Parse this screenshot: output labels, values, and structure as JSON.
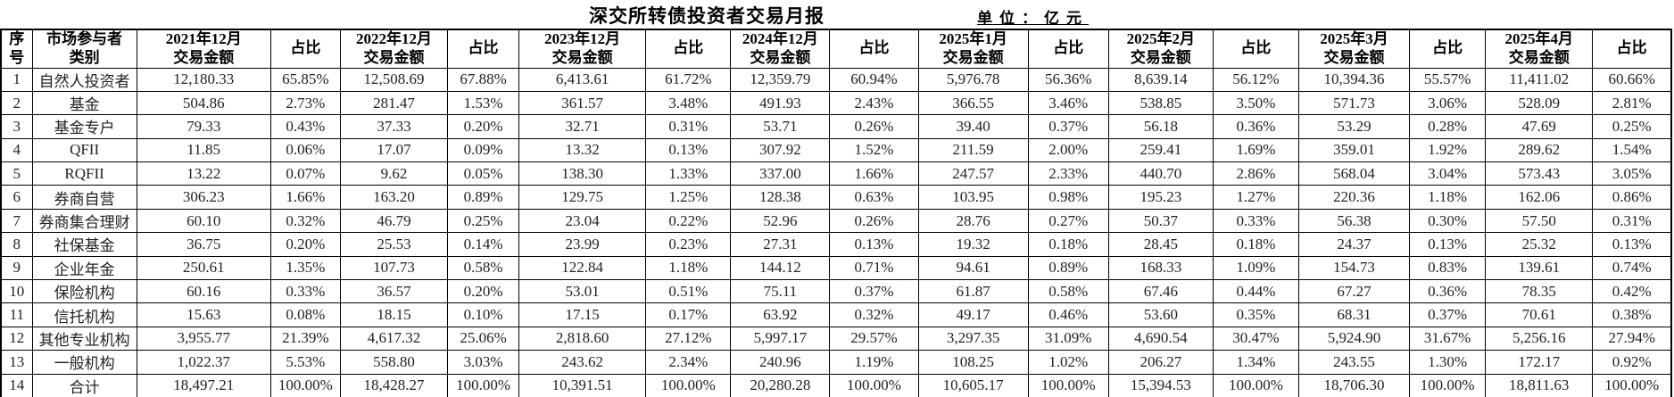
{
  "title": "深交所转债投资者交易月报",
  "unit_label": "单位：亿元",
  "colors": {
    "background": "#ffffff",
    "border": "#000000",
    "text": "#1a1a1a"
  },
  "table": {
    "seq_header": "序号",
    "category_header": "市场参与者\n类别",
    "amount_suffix": "交易金额",
    "ratio_header": "占比",
    "periods": [
      "2021年12月",
      "2022年12月",
      "2023年12月",
      "2024年12月",
      "2025年1月",
      "2025年2月",
      "2025年3月",
      "2025年4月"
    ],
    "rows": [
      {
        "seq": "1",
        "category": "自然人投资者",
        "values": [
          "12,180.33",
          "65.85%",
          "12,508.69",
          "67.88%",
          "6,413.61",
          "61.72%",
          "12,359.79",
          "60.94%",
          "5,976.78",
          "56.36%",
          "8,639.14",
          "56.12%",
          "10,394.36",
          "55.57%",
          "11,411.02",
          "60.66%"
        ]
      },
      {
        "seq": "2",
        "category": "基金",
        "values": [
          "504.86",
          "2.73%",
          "281.47",
          "1.53%",
          "361.57",
          "3.48%",
          "491.93",
          "2.43%",
          "366.55",
          "3.46%",
          "538.85",
          "3.50%",
          "571.73",
          "3.06%",
          "528.09",
          "2.81%"
        ]
      },
      {
        "seq": "3",
        "category": "基金专户",
        "values": [
          "79.33",
          "0.43%",
          "37.33",
          "0.20%",
          "32.71",
          "0.31%",
          "53.71",
          "0.26%",
          "39.40",
          "0.37%",
          "56.18",
          "0.36%",
          "53.29",
          "0.28%",
          "47.69",
          "0.25%"
        ]
      },
      {
        "seq": "4",
        "category": "QFII",
        "values": [
          "11.85",
          "0.06%",
          "17.07",
          "0.09%",
          "13.32",
          "0.13%",
          "307.92",
          "1.52%",
          "211.59",
          "2.00%",
          "259.41",
          "1.69%",
          "359.01",
          "1.92%",
          "289.62",
          "1.54%"
        ]
      },
      {
        "seq": "5",
        "category": "RQFII",
        "values": [
          "13.22",
          "0.07%",
          "9.62",
          "0.05%",
          "138.30",
          "1.33%",
          "337.00",
          "1.66%",
          "247.57",
          "2.33%",
          "440.70",
          "2.86%",
          "568.04",
          "3.04%",
          "573.43",
          "3.05%"
        ]
      },
      {
        "seq": "6",
        "category": "券商自营",
        "values": [
          "306.23",
          "1.66%",
          "163.20",
          "0.89%",
          "129.75",
          "1.25%",
          "128.38",
          "0.63%",
          "103.95",
          "0.98%",
          "195.23",
          "1.27%",
          "220.36",
          "1.18%",
          "162.06",
          "0.86%"
        ]
      },
      {
        "seq": "7",
        "category": "券商集合理财",
        "values": [
          "60.10",
          "0.32%",
          "46.79",
          "0.25%",
          "23.04",
          "0.22%",
          "52.96",
          "0.26%",
          "28.76",
          "0.27%",
          "50.37",
          "0.33%",
          "56.38",
          "0.30%",
          "57.50",
          "0.31%"
        ]
      },
      {
        "seq": "8",
        "category": "社保基金",
        "values": [
          "36.75",
          "0.20%",
          "25.53",
          "0.14%",
          "23.99",
          "0.23%",
          "27.31",
          "0.13%",
          "19.32",
          "0.18%",
          "28.45",
          "0.18%",
          "24.37",
          "0.13%",
          "25.32",
          "0.13%"
        ]
      },
      {
        "seq": "9",
        "category": "企业年金",
        "values": [
          "250.61",
          "1.35%",
          "107.73",
          "0.58%",
          "122.84",
          "1.18%",
          "144.12",
          "0.71%",
          "94.61",
          "0.89%",
          "168.33",
          "1.09%",
          "154.73",
          "0.83%",
          "139.61",
          "0.74%"
        ]
      },
      {
        "seq": "10",
        "category": "保险机构",
        "values": [
          "60.16",
          "0.33%",
          "36.57",
          "0.20%",
          "53.01",
          "0.51%",
          "75.11",
          "0.37%",
          "61.87",
          "0.58%",
          "67.46",
          "0.44%",
          "67.27",
          "0.36%",
          "78.35",
          "0.42%"
        ]
      },
      {
        "seq": "11",
        "category": "信托机构",
        "values": [
          "15.63",
          "0.08%",
          "18.15",
          "0.10%",
          "17.15",
          "0.17%",
          "63.92",
          "0.32%",
          "49.17",
          "0.46%",
          "53.60",
          "0.35%",
          "68.31",
          "0.37%",
          "70.61",
          "0.38%"
        ]
      },
      {
        "seq": "12",
        "category": "其他专业机构",
        "values": [
          "3,955.77",
          "21.39%",
          "4,617.32",
          "25.06%",
          "2,818.60",
          "27.12%",
          "5,997.17",
          "29.57%",
          "3,297.35",
          "31.09%",
          "4,690.54",
          "30.47%",
          "5,924.90",
          "31.67%",
          "5,256.16",
          "27.94%"
        ]
      },
      {
        "seq": "13",
        "category": "一般机构",
        "values": [
          "1,022.37",
          "5.53%",
          "558.80",
          "3.03%",
          "243.62",
          "2.34%",
          "240.96",
          "1.19%",
          "108.25",
          "1.02%",
          "206.27",
          "1.34%",
          "243.55",
          "1.30%",
          "172.17",
          "0.92%"
        ]
      },
      {
        "seq": "14",
        "category": "合计",
        "values": [
          "18,497.21",
          "100.00%",
          "18,428.27",
          "100.00%",
          "10,391.51",
          "100.00%",
          "20,280.28",
          "100.00%",
          "10,605.17",
          "100.00%",
          "15,394.53",
          "100.00%",
          "18,706.30",
          "100.00%",
          "18,811.63",
          "100.00%"
        ]
      }
    ]
  }
}
